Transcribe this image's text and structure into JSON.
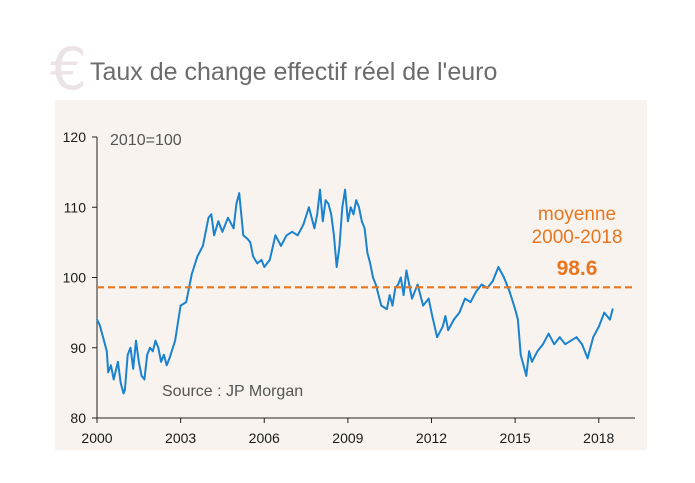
{
  "header": {
    "title": "Taux de change effectif réel de l'euro",
    "icon": "euro-icon",
    "icon_glyph": "€"
  },
  "colors": {
    "series": "#1a82cf",
    "average": "#e8761e",
    "plot_background": "#f8f3ee",
    "title": "#6b6b6b",
    "icon": "#ebe3e6"
  },
  "chart_data": {
    "type": "line",
    "title": "Taux de change effectif réel de l'euro",
    "xlabel": "",
    "ylabel": "",
    "base_note": "2010=100",
    "source": "Source : JP Morgan",
    "xlim": [
      2000,
      2019.3
    ],
    "ylim": [
      80,
      120
    ],
    "x_ticks": [
      2000,
      2003,
      2006,
      2009,
      2012,
      2015,
      2018
    ],
    "y_ticks": [
      80,
      90,
      100,
      110,
      120
    ],
    "grid": false,
    "average_line": {
      "value": 98.6,
      "label_line1": "moyenne",
      "label_line2": "2000-2018",
      "value_label": "98.6"
    },
    "x": [
      2000.0,
      2000.1,
      2000.25,
      2000.35,
      2000.4,
      2000.5,
      2000.6,
      2000.75,
      2000.85,
      2000.95,
      2001.0,
      2001.1,
      2001.2,
      2001.3,
      2001.4,
      2001.5,
      2001.6,
      2001.7,
      2001.8,
      2001.9,
      2002.0,
      2002.1,
      2002.2,
      2002.3,
      2002.4,
      2002.5,
      2002.6,
      2002.8,
      2003.0,
      2003.2,
      2003.4,
      2003.6,
      2003.8,
      2003.9,
      2004.0,
      2004.1,
      2004.2,
      2004.35,
      2004.5,
      2004.7,
      2004.9,
      2005.0,
      2005.1,
      2005.25,
      2005.4,
      2005.5,
      2005.6,
      2005.75,
      2005.9,
      2006.0,
      2006.2,
      2006.4,
      2006.6,
      2006.8,
      2007.0,
      2007.2,
      2007.4,
      2007.6,
      2007.8,
      2007.9,
      2008.0,
      2008.1,
      2008.2,
      2008.3,
      2008.4,
      2008.5,
      2008.6,
      2008.7,
      2008.8,
      2008.9,
      2009.0,
      2009.1,
      2009.2,
      2009.3,
      2009.4,
      2009.5,
      2009.6,
      2009.7,
      2009.8,
      2009.9,
      2010.0,
      2010.2,
      2010.4,
      2010.5,
      2010.6,
      2010.7,
      2010.8,
      2010.9,
      2011.0,
      2011.1,
      2011.2,
      2011.3,
      2011.5,
      2011.7,
      2011.9,
      2012.0,
      2012.2,
      2012.4,
      2012.5,
      2012.6,
      2012.8,
      2013.0,
      2013.2,
      2013.4,
      2013.6,
      2013.8,
      2014.0,
      2014.2,
      2014.4,
      2014.6,
      2014.8,
      2015.0,
      2015.1,
      2015.2,
      2015.3,
      2015.4,
      2015.5,
      2015.6,
      2015.8,
      2016.0,
      2016.2,
      2016.4,
      2016.6,
      2016.8,
      2017.0,
      2017.2,
      2017.4,
      2017.6,
      2017.8,
      2018.0,
      2018.2,
      2018.4,
      2018.5
    ],
    "series": [
      {
        "values": [
          94.0,
          93.2,
          91.0,
          89.5,
          86.5,
          87.5,
          85.5,
          88.0,
          85.0,
          83.5,
          84.0,
          89.0,
          90.0,
          87.0,
          91.0,
          88.0,
          86.0,
          85.5,
          89.0,
          90.0,
          89.5,
          91.0,
          90.0,
          88.0,
          89.0,
          87.5,
          88.5,
          91.0,
          96.0,
          96.5,
          100.5,
          103.0,
          104.5,
          106.5,
          108.5,
          109.0,
          106.0,
          108.0,
          106.5,
          108.5,
          107.0,
          110.5,
          112.0,
          106.0,
          105.5,
          105.0,
          103.0,
          102.0,
          102.5,
          101.5,
          102.5,
          106.0,
          104.5,
          106.0,
          106.5,
          106.0,
          107.5,
          110.0,
          107.0,
          109.0,
          112.5,
          108.0,
          111.0,
          110.5,
          109.0,
          106.0,
          101.5,
          104.5,
          110.0,
          112.5,
          108.0,
          110.0,
          109.0,
          111.0,
          110.0,
          108.0,
          107.0,
          103.5,
          102.0,
          100.0,
          99.0,
          96.0,
          95.5,
          97.5,
          96.0,
          98.5,
          99.0,
          100.0,
          97.5,
          101.0,
          99.0,
          97.0,
          99.0,
          96.0,
          97.0,
          95.0,
          91.5,
          93.0,
          94.5,
          92.5,
          94.0,
          95.0,
          97.0,
          96.5,
          98.0,
          99.0,
          98.5,
          99.5,
          101.5,
          100.0,
          98.0,
          95.5,
          94.0,
          89.0,
          87.5,
          86.0,
          89.5,
          88.0,
          89.5,
          90.5,
          92.0,
          90.5,
          91.5,
          90.5,
          91.0,
          91.5,
          90.5,
          88.5,
          91.5,
          93.0,
          95.0,
          94.0,
          95.5
        ]
      }
    ]
  }
}
